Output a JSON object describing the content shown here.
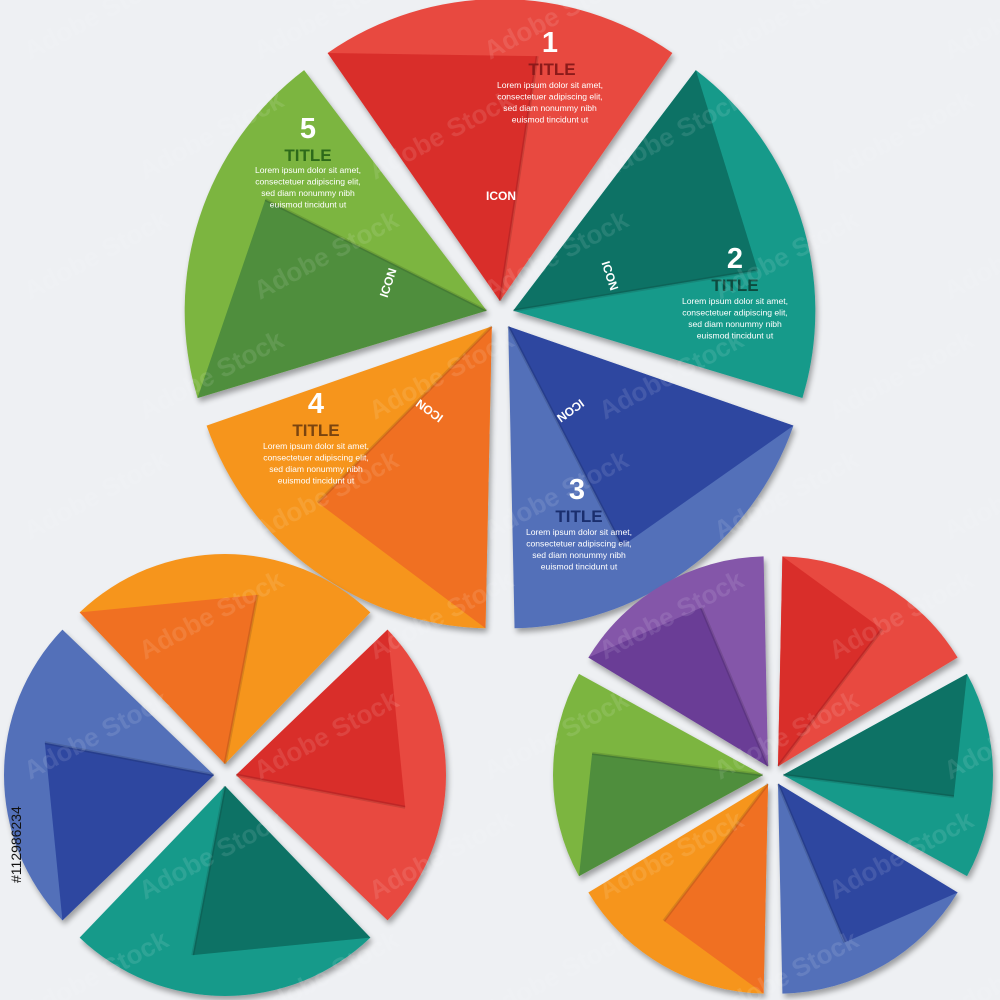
{
  "main_wheel": {
    "colors": {
      "red": {
        "light": "#e8493f",
        "dark": "#d92e2c",
        "title": "#8b1a1a"
      },
      "teal": {
        "light": "#159a8a",
        "dark": "#0d7265",
        "title": "#0d4a3e"
      },
      "blue": {
        "light": "#5270b9",
        "dark": "#2e47a0",
        "title": "#1a2e6e"
      },
      "orange": {
        "light": "#f6951f",
        "dark": "#f07022",
        "title": "#7a4410"
      },
      "green": {
        "light": "#7bb540",
        "dark": "#4f8e3c",
        "title": "#2d6a1a"
      }
    },
    "segments": [
      {
        "number": "1",
        "title": "TITLE",
        "icon": "ICON",
        "color": "red",
        "body": [
          "Lorem ipsum dolor sit amet,",
          "consectetuer adipiscing elit,",
          "sed diam nonummy nibh",
          "euismod tincidunt ut"
        ]
      },
      {
        "number": "2",
        "title": "TITLE",
        "icon": "ICON",
        "color": "teal",
        "body": [
          "Lorem ipsum dolor sit amet,",
          "consectetuer adipiscing elit,",
          "sed diam nonummy nibh",
          "euismod tincidunt ut"
        ]
      },
      {
        "number": "3",
        "title": "TITLE",
        "icon": "ICON",
        "color": "blue",
        "body": [
          "Lorem ipsum dolor sit amet,",
          "consectetuer adipiscing elit,",
          "sed diam nonummy nibh",
          "euismod tincidunt ut"
        ]
      },
      {
        "number": "4",
        "title": "TITLE",
        "icon": "ICON",
        "color": "orange",
        "body": [
          "Lorem ipsum dolor sit amet,",
          "consectetuer adipiscing elit,",
          "sed diam nonummy nibh",
          "euismod tincidunt ut"
        ]
      },
      {
        "number": "5",
        "title": "TITLE",
        "icon": "ICON",
        "color": "green",
        "body": [
          "Lorem ipsum dolor sit amet,",
          "consectetuer adipiscing elit,",
          "sed diam nonummy nibh",
          "euismod tincidunt ut"
        ]
      }
    ]
  },
  "four_wheel": {
    "segments": [
      {
        "color": "orange",
        "light": "#f6951f",
        "dark": "#f07022"
      },
      {
        "color": "red",
        "light": "#e8493f",
        "dark": "#d92e2c"
      },
      {
        "color": "teal",
        "light": "#159a8a",
        "dark": "#0d7265"
      },
      {
        "color": "blue",
        "light": "#5270b9",
        "dark": "#2e47a0"
      }
    ]
  },
  "six_wheel": {
    "segments": [
      {
        "color": "red",
        "light": "#e8493f",
        "dark": "#d92e2c"
      },
      {
        "color": "teal",
        "light": "#159a8a",
        "dark": "#0d7265"
      },
      {
        "color": "blue",
        "light": "#5270b9",
        "dark": "#2e47a0"
      },
      {
        "color": "orange",
        "light": "#f6951f",
        "dark": "#f07022"
      },
      {
        "color": "green",
        "light": "#7bb540",
        "dark": "#4f8e3c"
      },
      {
        "color": "purple",
        "light": "#8457a9",
        "dark": "#6a3d96"
      }
    ]
  },
  "watermark_text": "Adobe Stock",
  "stock_id": "#112986234"
}
